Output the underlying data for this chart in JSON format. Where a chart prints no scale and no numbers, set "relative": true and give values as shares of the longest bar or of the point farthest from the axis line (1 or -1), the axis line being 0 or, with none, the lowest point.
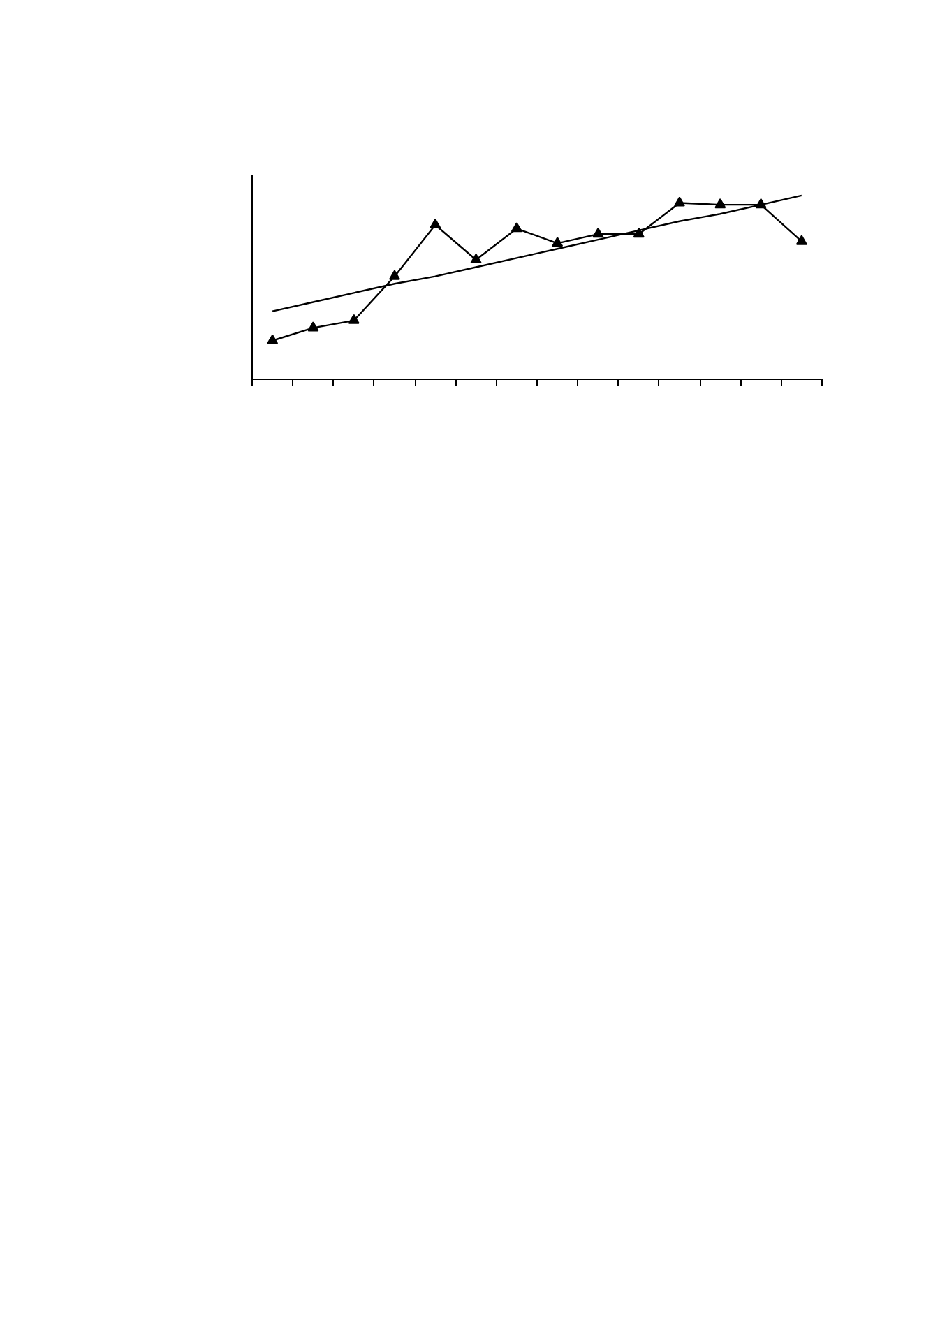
{
  "chart_data": {
    "type": "line",
    "relative": true,
    "categories": [
      null,
      null,
      null,
      null,
      null,
      null,
      null,
      null,
      null,
      null,
      null,
      null,
      null,
      null
    ],
    "series": [
      {
        "color": "#000000",
        "marker": "none",
        "values": [
          0.37,
          0.42,
          0.47,
          0.52,
          0.56,
          0.61,
          0.66,
          0.71,
          0.76,
          0.81,
          0.86,
          0.9,
          0.95,
          1.0
        ]
      },
      {
        "color": "#000000",
        "marker": "triangle",
        "values": [
          0.21,
          0.28,
          0.32,
          0.56,
          0.84,
          0.65,
          0.82,
          0.74,
          0.79,
          0.79,
          0.96,
          0.95,
          0.95,
          0.75
        ]
      }
    ],
    "grid": false,
    "line_style": "solid"
  }
}
